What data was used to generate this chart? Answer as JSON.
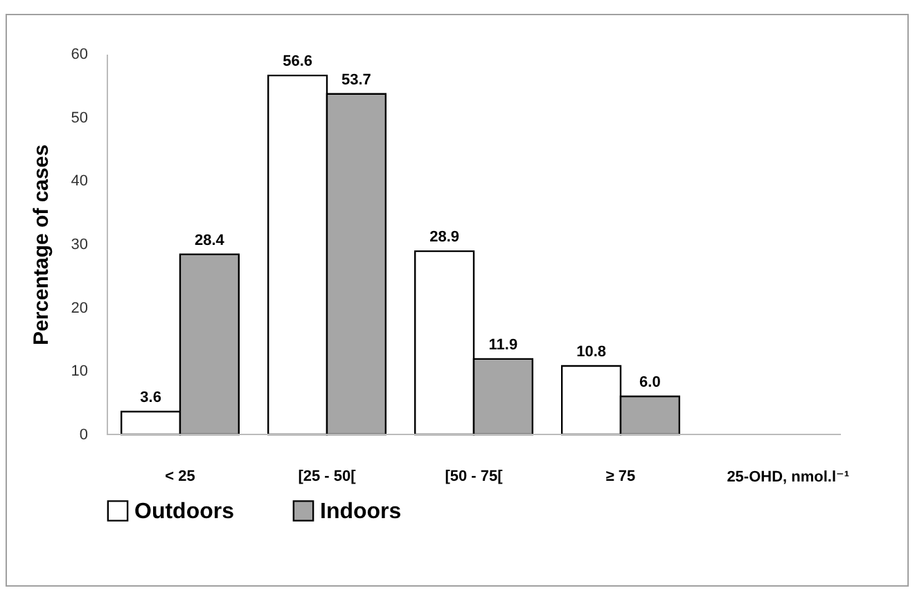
{
  "chart_data": {
    "type": "bar",
    "ylabel": "Percentage of cases",
    "xlabel": "25-OHD, nmol.l⁻¹",
    "categories": [
      "< 25",
      "[25 - 50[",
      "[50 - 75[",
      "≥ 75"
    ],
    "series": [
      {
        "name": "Outdoors",
        "color": "#ffffff",
        "values": [
          3.6,
          56.6,
          28.9,
          10.8
        ],
        "value_labels": [
          "3.6",
          "56.6",
          "28.9",
          "10.8"
        ]
      },
      {
        "name": "Indoors",
        "color": "#a6a6a6",
        "values": [
          28.4,
          53.7,
          11.9,
          6.0
        ],
        "value_labels": [
          "28.4",
          "53.7",
          "11.9",
          "6.0"
        ]
      }
    ],
    "ylim": [
      0,
      60
    ],
    "yticks": [
      0,
      10,
      20,
      30,
      40,
      50,
      60
    ],
    "grid": false,
    "legend": "bottom"
  }
}
